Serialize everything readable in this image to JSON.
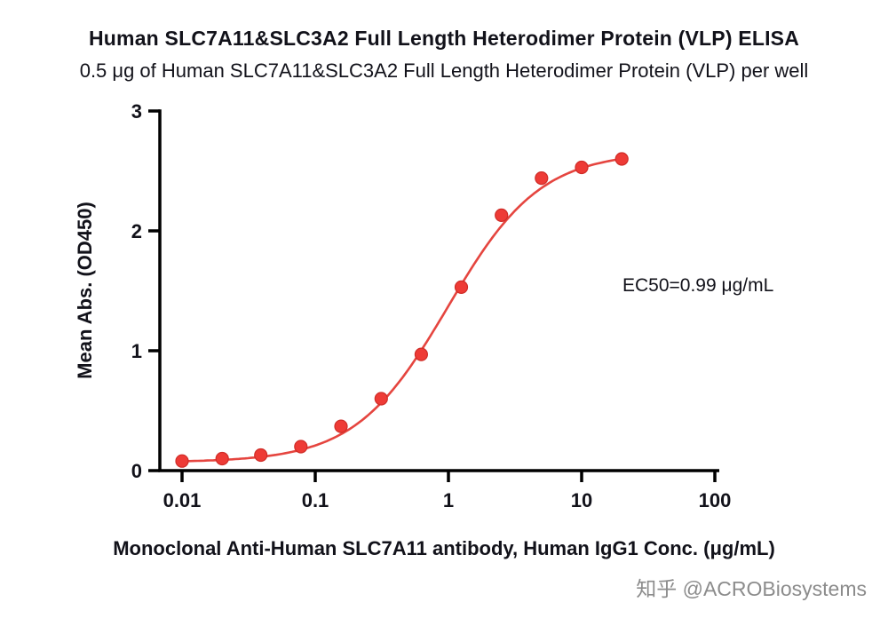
{
  "chart_data": {
    "type": "scatter",
    "title": "Human SLC7A11&SLC3A2 Full Length Heterodimer Protein (VLP) ELISA",
    "subtitle": "0.5 μg of Human SLC7A11&SLC3A2 Full Length Heterodimer Protein (VLP) per well",
    "xlabel": "Monoclonal Anti-Human SLC7A11 antibody, Human IgG1 Conc. (μg/mL)",
    "ylabel": "Mean Abs. (OD450)",
    "x_scale": "log10",
    "xlim": [
      0.01,
      100
    ],
    "ylim": [
      0,
      3
    ],
    "x_ticks": [
      0.01,
      0.1,
      1,
      10,
      100
    ],
    "x_tick_labels": [
      "0.01",
      "0.1",
      "1",
      "10",
      "100"
    ],
    "y_ticks": [
      0,
      1,
      2,
      3
    ],
    "y_tick_labels": [
      "0",
      "1",
      "2",
      "3"
    ],
    "grid": false,
    "legend": "none",
    "points": {
      "x": [
        0.01,
        0.02,
        0.039,
        0.078,
        0.156,
        0.313,
        0.625,
        1.25,
        2.5,
        5,
        10,
        20
      ],
      "y": [
        0.08,
        0.1,
        0.13,
        0.2,
        0.37,
        0.6,
        0.97,
        1.53,
        2.13,
        2.44,
        2.53,
        2.6
      ]
    },
    "fit": {
      "model": "4PL",
      "bottom": 0.07,
      "top": 2.66,
      "ec50": 0.99,
      "hill": 1.25,
      "x_start": 0.01,
      "x_end": 20
    },
    "annotation": "EC50=0.99 μg/mL",
    "colors": {
      "series": "#ee3b36",
      "series_edge": "#cf2c27",
      "curve": "#e5453f",
      "axis": "#000000",
      "text": "#12121a"
    }
  },
  "watermark": {
    "text": "知乎 @ACROBiosystems",
    "color": "#8c8c8c"
  }
}
